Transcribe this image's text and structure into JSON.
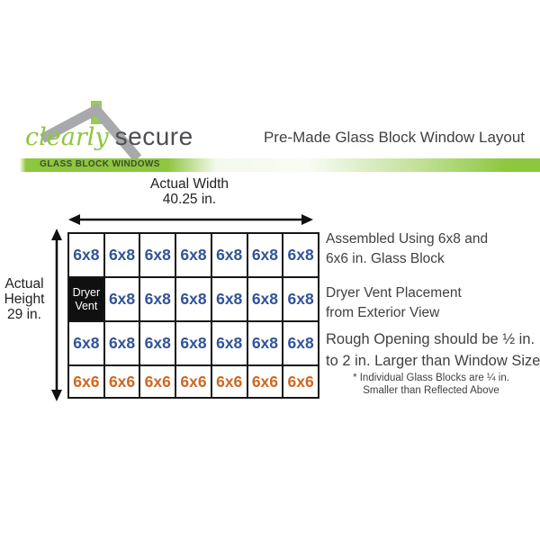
{
  "colors": {
    "green": "#8dc63f",
    "blue": "#30549a",
    "orange": "#cf6721",
    "roof-gray": "#a7a9ac",
    "text-dark": "#414042"
  },
  "brand": {
    "script_word": "clearly",
    "plain_word": "secure",
    "tagline": "GLASS BLOCK WINDOWS"
  },
  "header": {
    "title": "Pre-Made Glass Block Window Layout"
  },
  "diagram": {
    "width_label": "Actual Width",
    "width_value": "40.25 in.",
    "height_lines": [
      "Actual",
      "Height",
      "29 in."
    ],
    "grid": {
      "columns": 7,
      "vent_label": "Dryer Vent",
      "vent_lines": [
        "Dryer",
        "Vent"
      ],
      "rows": [
        {
          "cells": [
            "6x8",
            "6x8",
            "6x8",
            "6x8",
            "6x8",
            "6x8",
            "6x8"
          ]
        },
        {
          "cells": [
            "Dryer Vent",
            "6x8",
            "6x8",
            "6x8",
            "6x8",
            "6x8",
            "6x8"
          ]
        },
        {
          "cells": [
            "6x8",
            "6x8",
            "6x8",
            "6x8",
            "6x8",
            "6x8",
            "6x8"
          ]
        },
        {
          "cells": [
            "6x6",
            "6x6",
            "6x6",
            "6x6",
            "6x6",
            "6x6",
            "6x6"
          ]
        }
      ]
    }
  },
  "notes": [
    {
      "lines": [
        "Assembled Using 6x8 and",
        "6x6 in. Glass Block"
      ]
    },
    {
      "lines": [
        "Dryer Vent Placement",
        "from Exterior View"
      ]
    },
    {
      "lines": [
        "Rough Opening should be ½ in.",
        "to 2 in. Larger than Window Size"
      ]
    }
  ],
  "footnote": {
    "lines": [
      "* Individual Glass Blocks are ¼ in.",
      "Smaller than Reflected Above"
    ]
  }
}
